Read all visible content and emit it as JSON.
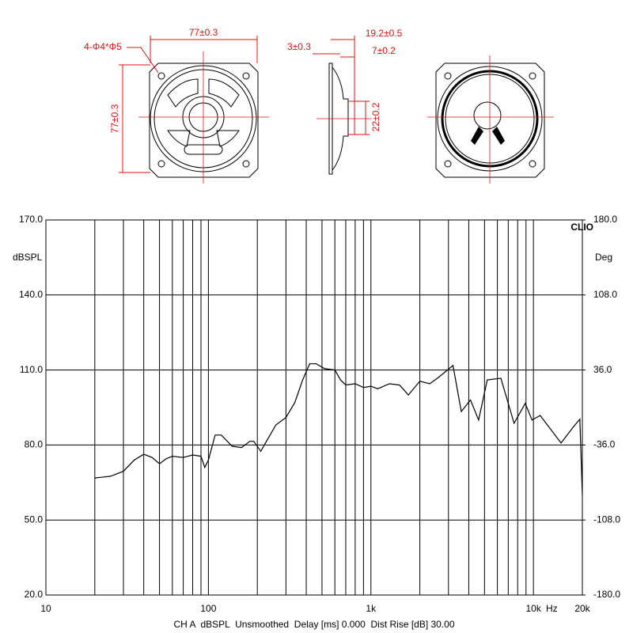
{
  "drawing": {
    "labels": [
      "77±0.3",
      "4-Φ4*Φ5",
      "77±0.3",
      "3±0.3",
      "19.2±0.5",
      "7±0.2",
      "22±0.2"
    ]
  },
  "chart_data": {
    "type": "line",
    "brand": "CLIO",
    "ylabel": "dBSPL",
    "y2label": "Deg",
    "x_unit": "Hz",
    "footer": "CH A  dBSPL  Unsmoothed  Delay [ms] 0.000  Dist Rise [dB] 30.00",
    "log_x": true,
    "grid": true,
    "color": "#000000",
    "xlim": [
      10,
      20000
    ],
    "xticks": [
      10,
      100,
      {
        "value": 1000,
        "label": "1k"
      },
      {
        "value": 10000,
        "label": "10k"
      },
      {
        "value": 20000,
        "label": "20k"
      }
    ],
    "xminor": [
      20,
      30,
      40,
      50,
      60,
      70,
      80,
      90,
      200,
      300,
      400,
      500,
      600,
      700,
      800,
      900,
      2000,
      3000,
      4000,
      5000,
      6000,
      7000,
      8000,
      9000
    ],
    "ylim": [
      20,
      170
    ],
    "yticks": [
      {
        "value": 20,
        "label": "20.0"
      },
      {
        "value": 50,
        "label": "50.0"
      },
      {
        "value": 80,
        "label": "80.0"
      },
      {
        "value": 110,
        "label": "110.0"
      },
      {
        "value": 140,
        "label": "140.0"
      },
      {
        "value": 170,
        "label": "170.0"
      }
    ],
    "y2lim": [
      -180,
      180
    ],
    "y2ticks": [
      {
        "value": -180,
        "label": "-180.0"
      },
      {
        "value": -108,
        "label": "-108.0"
      },
      {
        "value": -36,
        "label": "-36.0"
      },
      {
        "value": 36,
        "label": "36.0"
      },
      {
        "value": 108,
        "label": "108.0"
      },
      {
        "value": 180,
        "label": "180.0"
      }
    ],
    "x": [
      20,
      25,
      30,
      35,
      40,
      45,
      50,
      55,
      60,
      70,
      80,
      90,
      95,
      100,
      110,
      120,
      140,
      160,
      180,
      190,
      210,
      230,
      260,
      300,
      340,
      380,
      420,
      460,
      520,
      600,
      650,
      700,
      800,
      900,
      1000,
      1100,
      1300,
      1500,
      1700,
      2000,
      2300,
      2600,
      3200,
      3600,
      4100,
      4600,
      5200,
      6300,
      7600,
      8900,
      9800,
      11000,
      14800,
      17500,
      19300,
      20000
    ],
    "values": [
      66.8,
      67.5,
      69.5,
      74,
      76.3,
      75,
      72.5,
      74.5,
      75.5,
      75,
      76,
      75.5,
      71,
      74,
      84,
      84,
      79.5,
      79,
      81.5,
      81.5,
      77.5,
      82,
      88,
      91,
      97,
      106,
      112.5,
      112.5,
      110.5,
      110,
      106,
      104,
      104.5,
      103,
      103.5,
      102.5,
      104.5,
      104,
      100,
      105.5,
      104.5,
      107,
      111.8,
      93.4,
      98,
      90,
      106,
      106.7,
      88.7,
      96.6,
      90,
      91.8,
      80.8,
      87,
      90.3,
      60
    ]
  }
}
